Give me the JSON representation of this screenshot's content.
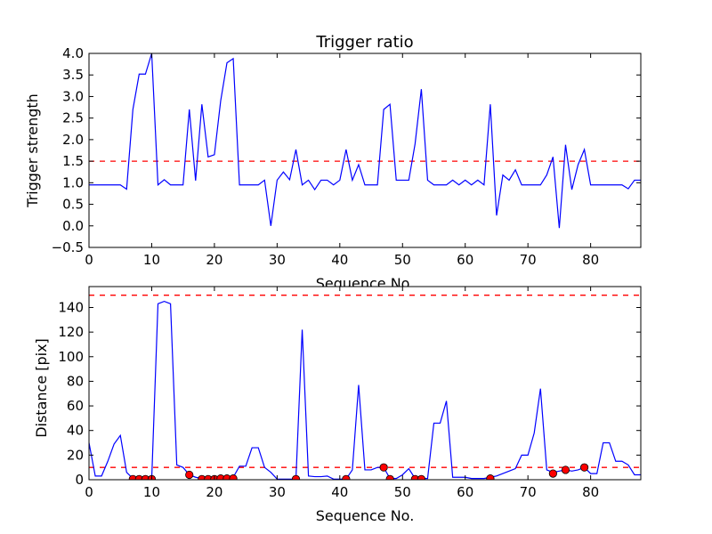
{
  "chart_data": [
    {
      "type": "line",
      "title": "Trigger ratio",
      "xlabel": "Sequence No.",
      "ylabel": "Trigger strength",
      "xlim": [
        0,
        88
      ],
      "ylim": [
        -0.5,
        4.0
      ],
      "xticks": [
        "0",
        "10",
        "20",
        "30",
        "40",
        "50",
        "60",
        "70",
        "80"
      ],
      "yticks": [
        "−0.5",
        "0.0",
        "0.5",
        "1.0",
        "1.5",
        "2.0",
        "2.5",
        "3.0",
        "3.5",
        "4.0"
      ],
      "grid": false,
      "series": [
        {
          "color": "#0000ff",
          "x": [
            0,
            1,
            2,
            3,
            4,
            5,
            6,
            7,
            8,
            9,
            10,
            11,
            12,
            13,
            14,
            15,
            16,
            17,
            18,
            19,
            20,
            21,
            22,
            23,
            24,
            25,
            26,
            27,
            28,
            29,
            30,
            31,
            32,
            33,
            34,
            35,
            36,
            37,
            38,
            39,
            40,
            41,
            42,
            43,
            44,
            45,
            46,
            47,
            48,
            49,
            50,
            51,
            52,
            53,
            54,
            55,
            56,
            57,
            58,
            59,
            60,
            61,
            62,
            63,
            64,
            65,
            66,
            67,
            68,
            69,
            70,
            71,
            72,
            73,
            74,
            75,
            76,
            77,
            78,
            79,
            80,
            81,
            82,
            83,
            84,
            85,
            86,
            87,
            88
          ],
          "y": [
            0.95,
            0.95,
            0.95,
            0.95,
            0.95,
            0.95,
            0.85,
            2.7,
            3.52,
            3.52,
            4.0,
            0.95,
            1.07,
            0.95,
            0.95,
            0.95,
            2.7,
            1.05,
            2.82,
            1.6,
            1.65,
            2.9,
            3.78,
            3.88,
            0.95,
            0.95,
            0.95,
            0.95,
            1.06,
            0.0,
            1.06,
            1.25,
            1.07,
            1.77,
            0.95,
            1.06,
            0.84,
            1.06,
            1.06,
            0.95,
            1.06,
            1.77,
            1.06,
            1.42,
            0.95,
            0.95,
            0.95,
            2.7,
            2.82,
            1.06,
            1.06,
            1.06,
            1.9,
            3.17,
            1.06,
            0.95,
            0.95,
            0.95,
            1.06,
            0.95,
            1.06,
            0.95,
            1.06,
            0.95,
            2.82,
            0.24,
            1.18,
            1.06,
            1.3,
            0.95,
            0.95,
            0.95,
            0.95,
            1.18,
            1.6,
            -0.05,
            1.88,
            0.84,
            1.42,
            1.77,
            0.95,
            0.95,
            0.95,
            0.95,
            0.95,
            0.95,
            0.86,
            1.06,
            1.06
          ]
        }
      ],
      "hlines": [
        {
          "y": 1.5,
          "color": "#ff0000",
          "style": "dashed"
        }
      ]
    },
    {
      "type": "line",
      "title": "",
      "xlabel": "Sequence No.",
      "ylabel": "Distance [pix]",
      "xlim": [
        0,
        88
      ],
      "ylim": [
        0,
        157
      ],
      "xticks": [
        "0",
        "10",
        "20",
        "30",
        "40",
        "50",
        "60",
        "70",
        "80"
      ],
      "yticks": [
        "0",
        "20",
        "40",
        "60",
        "80",
        "100",
        "120",
        "140"
      ],
      "grid": false,
      "series": [
        {
          "color": "#0000ff",
          "x": [
            0,
            1,
            2,
            3,
            4,
            5,
            6,
            7,
            8,
            9,
            10,
            11,
            12,
            13,
            14,
            15,
            16,
            17,
            18,
            19,
            20,
            21,
            22,
            23,
            24,
            25,
            26,
            27,
            28,
            29,
            30,
            31,
            32,
            33,
            34,
            35,
            36,
            37,
            38,
            39,
            40,
            41,
            42,
            43,
            44,
            45,
            46,
            47,
            48,
            49,
            50,
            51,
            52,
            53,
            54,
            55,
            56,
            57,
            58,
            59,
            60,
            61,
            62,
            63,
            64,
            65,
            66,
            67,
            68,
            69,
            70,
            71,
            72,
            73,
            74,
            75,
            76,
            77,
            78,
            79,
            80,
            81,
            82,
            83,
            84,
            85,
            86,
            87,
            88
          ],
          "y": [
            30,
            3,
            3,
            15,
            29,
            36,
            6,
            1,
            1,
            1,
            0.5,
            143,
            145,
            143,
            12,
            10,
            4,
            2,
            1,
            0.5,
            1,
            1,
            1,
            2,
            11,
            11,
            26,
            26,
            10,
            6,
            0.5,
            0.5,
            0.5,
            0.5,
            122,
            3,
            2.5,
            2.5,
            3,
            0.5,
            0.5,
            0.5,
            8,
            77,
            8,
            8,
            10,
            10,
            1,
            1,
            4,
            9,
            1,
            1,
            1,
            46,
            46,
            64,
            2,
            2,
            2,
            1,
            1,
            1,
            2,
            3,
            5,
            7,
            9,
            20,
            20,
            38,
            74,
            8,
            6,
            7,
            8,
            7,
            8,
            10,
            5,
            5,
            30,
            30,
            15,
            15,
            12,
            4,
            4
          ]
        },
        {
          "color": "#ff0000",
          "marker": "circle",
          "x": [
            7,
            8,
            9,
            10,
            16,
            18,
            19,
            20,
            21,
            22,
            23,
            33,
            41,
            47,
            48,
            52,
            53,
            64,
            74,
            76,
            79
          ],
          "y": [
            0.5,
            0.5,
            0.5,
            0.5,
            4,
            0.5,
            0.5,
            0.5,
            1,
            1,
            1,
            0.5,
            0.5,
            10,
            0.5,
            0.5,
            0.5,
            1,
            5,
            8,
            10
          ]
        }
      ],
      "hlines": [
        {
          "y": 150,
          "color": "#ff0000",
          "style": "dashed"
        },
        {
          "y": 10,
          "color": "#ff0000",
          "style": "dashed"
        }
      ]
    }
  ]
}
